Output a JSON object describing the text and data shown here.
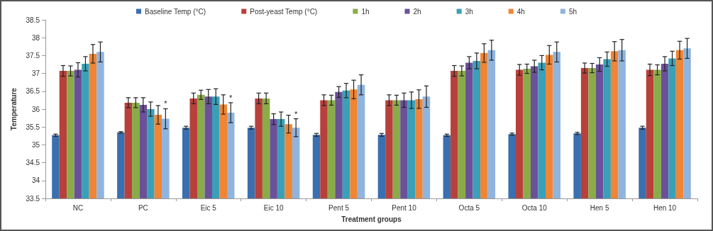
{
  "chart_data": {
    "type": "bar",
    "xlabel": "Treatment groups",
    "ylabel": "Temperature",
    "categories": [
      "NC",
      "PC",
      "Eic 5",
      "Eic 10",
      "Pent 5",
      "Pent 10",
      "Octa 5",
      "Octa 10",
      "Hen 5",
      "Hen 10"
    ],
    "series": [
      {
        "name": "Baseline Temp (°C)",
        "color": "#3a6fb0",
        "values": [
          35.27,
          35.35,
          35.48,
          35.48,
          35.28,
          35.28,
          35.27,
          35.3,
          35.32,
          35.48
        ],
        "errors": [
          0.03,
          0.02,
          0.04,
          0.04,
          0.04,
          0.04,
          0.03,
          0.03,
          0.03,
          0.04
        ]
      },
      {
        "name": "Post-yeast Temp (°C)",
        "color": "#b8403b",
        "values": [
          37.07,
          36.18,
          36.3,
          36.3,
          36.25,
          36.25,
          37.07,
          37.1,
          37.15,
          37.1
        ],
        "errors": [
          0.15,
          0.14,
          0.15,
          0.15,
          0.15,
          0.15,
          0.15,
          0.15,
          0.14,
          0.16
        ]
      },
      {
        "name": "1h",
        "color": "#8aac48",
        "values": [
          37.07,
          36.18,
          36.4,
          36.3,
          36.25,
          36.25,
          37.07,
          37.13,
          37.15,
          37.1
        ],
        "errors": [
          0.14,
          0.14,
          0.13,
          0.15,
          0.14,
          0.14,
          0.14,
          0.13,
          0.13,
          0.14
        ]
      },
      {
        "name": "2h",
        "color": "#6a519a",
        "values": [
          37.1,
          36.12,
          36.35,
          35.72,
          36.48,
          36.25,
          37.3,
          37.2,
          37.25,
          37.27
        ],
        "errors": [
          0.2,
          0.2,
          0.2,
          0.15,
          0.15,
          0.2,
          0.17,
          0.17,
          0.19,
          0.2
        ]
      },
      {
        "name": "3h",
        "color": "#3aa0b8",
        "values": [
          37.27,
          36.0,
          36.35,
          35.72,
          36.52,
          36.25,
          37.35,
          37.3,
          37.4,
          37.42
        ],
        "errors": [
          0.2,
          0.2,
          0.22,
          0.2,
          0.2,
          0.23,
          0.22,
          0.2,
          0.2,
          0.2
        ]
      },
      {
        "name": "4h",
        "color": "#ef8535",
        "values": [
          37.55,
          35.84,
          36.13,
          35.58,
          36.55,
          36.28,
          37.57,
          37.52,
          37.62,
          37.65
        ],
        "errors": [
          0.26,
          0.26,
          0.27,
          0.25,
          0.26,
          0.26,
          0.26,
          0.26,
          0.27,
          0.25
        ]
      },
      {
        "name": "5h",
        "color": "#8fb4de",
        "values": [
          37.6,
          35.73,
          35.9,
          35.48,
          36.68,
          36.35,
          37.65,
          37.6,
          37.65,
          37.7
        ],
        "errors": [
          0.28,
          0.28,
          0.28,
          0.25,
          0.28,
          0.3,
          0.28,
          0.28,
          0.3,
          0.28
        ]
      }
    ],
    "ylim": [
      33.5,
      38.5
    ],
    "yticks": [
      33.5,
      34,
      34.5,
      35,
      35.5,
      36,
      36.5,
      37,
      37.5,
      38,
      38.5
    ],
    "grid": false,
    "legend": "top",
    "annotations": [
      {
        "text": "*",
        "x": "PC",
        "y": 36.04
      },
      {
        "text": "*",
        "x": "Eic 5",
        "y": 36.2
      },
      {
        "text": "*",
        "x": "Eic 10",
        "y": 35.75
      }
    ]
  }
}
